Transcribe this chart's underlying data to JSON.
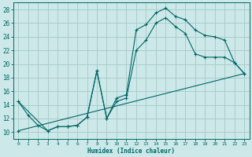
{
  "xlabel": "Humidex (Indice chaleur)",
  "bg_color": "#cce8e8",
  "grid_color": "#aacccc",
  "line_color": "#006666",
  "ylim": [
    9,
    29
  ],
  "xlim": [
    -0.5,
    23.5
  ],
  "yticks": [
    10,
    12,
    14,
    16,
    18,
    20,
    22,
    24,
    26,
    28
  ],
  "xticks": [
    0,
    1,
    2,
    3,
    4,
    5,
    6,
    7,
    8,
    9,
    10,
    11,
    12,
    13,
    14,
    15,
    16,
    17,
    18,
    19,
    20,
    21,
    22,
    23
  ],
  "series1_x": [
    0,
    1,
    2,
    3,
    4,
    5,
    6,
    7,
    8,
    9,
    10,
    11,
    12,
    13,
    14,
    15,
    16,
    17,
    18,
    19,
    20,
    21,
    22,
    23
  ],
  "series1_y": [
    14.5,
    12.5,
    11.0,
    10.2,
    10.8,
    10.8,
    11.0,
    12.2,
    19.0,
    12.0,
    15.0,
    15.5,
    25.0,
    25.8,
    27.5,
    28.2,
    27.0,
    26.5,
    25.0,
    24.2,
    24.0,
    23.5,
    20.2,
    18.6
  ],
  "series2_x": [
    0,
    3,
    4,
    5,
    6,
    7,
    8,
    9,
    10,
    11,
    12,
    13,
    14,
    15,
    16,
    17,
    18,
    19,
    20,
    21,
    22,
    23
  ],
  "series2_y": [
    14.5,
    10.2,
    10.8,
    10.8,
    11.0,
    12.2,
    19.0,
    12.0,
    14.5,
    15.0,
    22.0,
    23.5,
    26.0,
    26.8,
    25.5,
    24.5,
    21.5,
    21.0,
    21.0,
    21.0,
    20.2,
    18.6
  ],
  "series3_x": [
    0,
    23
  ],
  "series3_y": [
    10.2,
    18.6
  ]
}
